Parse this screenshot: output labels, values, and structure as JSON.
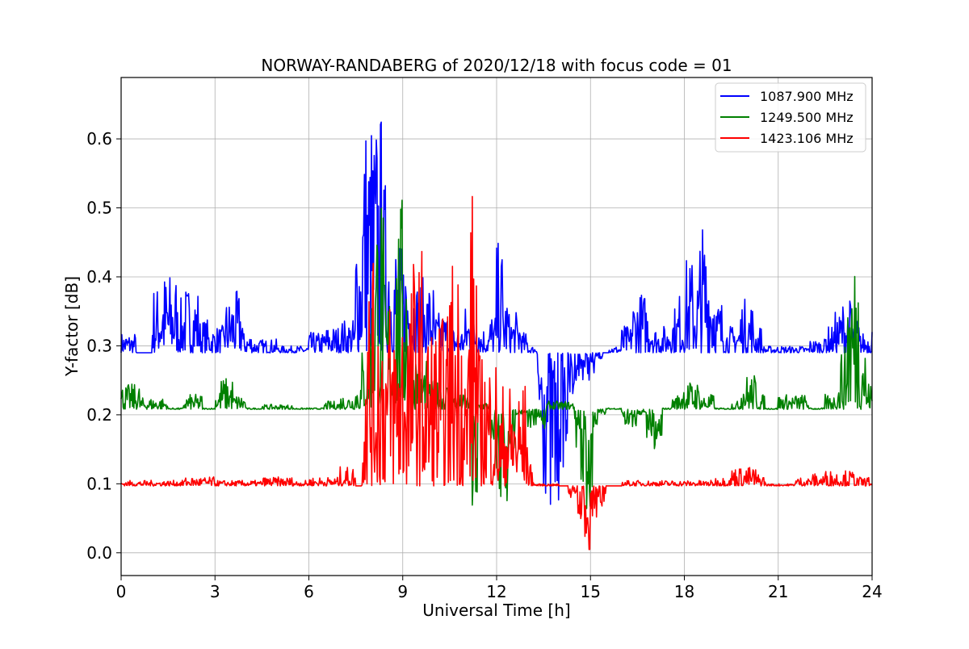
{
  "chart_data": {
    "type": "line",
    "title": "NORWAY-RANDABERG of 2020/12/18 with focus code = 01",
    "xlabel": "Universal Time [h]",
    "ylabel": "Y-factor [dB]",
    "xlim": [
      0,
      24
    ],
    "ylim": [
      -0.033,
      0.689
    ],
    "xticks": [
      0,
      3,
      6,
      9,
      12,
      15,
      18,
      21,
      24
    ],
    "yticks": [
      0.0,
      0.1,
      0.2,
      0.3,
      0.4,
      0.5,
      0.6
    ],
    "ytick_labels": [
      "0.0",
      "0.1",
      "0.2",
      "0.3",
      "0.4",
      "0.5",
      "0.6"
    ],
    "grid": true,
    "legend_position": "top-right",
    "series": [
      {
        "name": "1087.900 MHz",
        "color": "#0000ff",
        "baseline": 0.29,
        "points": [
          [
            0,
            0.29
          ],
          [
            0.3,
            0.32
          ],
          [
            0.5,
            0.29
          ],
          [
            1.0,
            0.29
          ],
          [
            1.2,
            0.39
          ],
          [
            1.3,
            0.41
          ],
          [
            1.5,
            0.33
          ],
          [
            1.6,
            0.41
          ],
          [
            1.8,
            0.34
          ],
          [
            2.0,
            0.37
          ],
          [
            2.2,
            0.39
          ],
          [
            2.5,
            0.34
          ],
          [
            2.8,
            0.33
          ],
          [
            3.0,
            0.31
          ],
          [
            3.3,
            0.33
          ],
          [
            3.5,
            0.37
          ],
          [
            3.7,
            0.38
          ],
          [
            3.9,
            0.32
          ],
          [
            4.2,
            0.31
          ],
          [
            4.5,
            0.31
          ],
          [
            5.0,
            0.3
          ],
          [
            5.5,
            0.3
          ],
          [
            6.0,
            0.3
          ],
          [
            6.5,
            0.32
          ],
          [
            7.0,
            0.33
          ],
          [
            7.3,
            0.34
          ],
          [
            7.5,
            0.3
          ],
          [
            7.7,
            0.5
          ],
          [
            7.8,
            0.65
          ],
          [
            8.0,
            0.6
          ],
          [
            8.2,
            0.65
          ],
          [
            8.4,
            0.55
          ],
          [
            8.6,
            0.48
          ],
          [
            8.8,
            0.45
          ],
          [
            9.0,
            0.45
          ],
          [
            9.2,
            0.42
          ],
          [
            9.4,
            0.36
          ],
          [
            9.6,
            0.4
          ],
          [
            10.0,
            0.35
          ],
          [
            10.5,
            0.33
          ],
          [
            11.0,
            0.32
          ],
          [
            11.3,
            0.36
          ],
          [
            11.5,
            0.33
          ],
          [
            11.8,
            0.3
          ],
          [
            12.0,
            0.35
          ],
          [
            12.1,
            0.45
          ],
          [
            12.2,
            0.38
          ],
          [
            12.4,
            0.3
          ],
          [
            12.6,
            0.35
          ],
          [
            12.8,
            0.32
          ],
          [
            13.0,
            0.3
          ],
          [
            13.3,
            0.2
          ],
          [
            13.5,
            0.15
          ],
          [
            13.7,
            0.08
          ],
          [
            13.85,
            0.0
          ],
          [
            14.0,
            0.12
          ],
          [
            14.3,
            0.2
          ],
          [
            14.5,
            0.25
          ],
          [
            14.8,
            0.27
          ],
          [
            15.0,
            0.25
          ],
          [
            15.2,
            0.28
          ],
          [
            15.4,
            0.29
          ],
          [
            15.6,
            0.29
          ],
          [
            16.0,
            0.3
          ],
          [
            16.3,
            0.33
          ],
          [
            16.5,
            0.38
          ],
          [
            16.8,
            0.37
          ],
          [
            17.0,
            0.33
          ],
          [
            17.3,
            0.31
          ],
          [
            17.5,
            0.33
          ],
          [
            17.8,
            0.36
          ],
          [
            18.0,
            0.38
          ],
          [
            18.2,
            0.43
          ],
          [
            18.4,
            0.38
          ],
          [
            18.5,
            0.42
          ],
          [
            18.6,
            0.48
          ],
          [
            18.8,
            0.44
          ],
          [
            19.0,
            0.37
          ],
          [
            19.3,
            0.33
          ],
          [
            19.6,
            0.32
          ],
          [
            19.8,
            0.34
          ],
          [
            20.0,
            0.37
          ],
          [
            20.2,
            0.33
          ],
          [
            20.5,
            0.3
          ],
          [
            21.0,
            0.3
          ],
          [
            21.5,
            0.3
          ],
          [
            22.0,
            0.3
          ],
          [
            22.5,
            0.31
          ],
          [
            22.8,
            0.33
          ],
          [
            23.0,
            0.35
          ],
          [
            23.2,
            0.37
          ],
          [
            23.4,
            0.34
          ],
          [
            23.6,
            0.31
          ],
          [
            24.0,
            0.32
          ]
        ]
      },
      {
        "name": "1249.500 MHz",
        "color": "#008000",
        "baseline": 0.208,
        "points": [
          [
            0,
            0.21
          ],
          [
            0.3,
            0.245
          ],
          [
            0.6,
            0.21
          ],
          [
            1.0,
            0.225
          ],
          [
            1.5,
            0.21
          ],
          [
            2.0,
            0.21
          ],
          [
            2.3,
            0.23
          ],
          [
            2.6,
            0.21
          ],
          [
            3.0,
            0.21
          ],
          [
            3.2,
            0.24
          ],
          [
            3.4,
            0.255
          ],
          [
            3.6,
            0.23
          ],
          [
            4.0,
            0.21
          ],
          [
            4.5,
            0.21
          ],
          [
            5.0,
            0.215
          ],
          [
            5.5,
            0.21
          ],
          [
            6.0,
            0.21
          ],
          [
            6.5,
            0.21
          ],
          [
            7.0,
            0.22
          ],
          [
            7.3,
            0.23
          ],
          [
            7.5,
            0.2
          ],
          [
            7.7,
            0.25
          ],
          [
            7.9,
            0.3
          ],
          [
            8.1,
            0.4
          ],
          [
            8.2,
            0.55
          ],
          [
            8.4,
            0.4
          ],
          [
            8.6,
            0.35
          ],
          [
            8.8,
            0.3
          ],
          [
            9.0,
            0.52
          ],
          [
            9.2,
            0.3
          ],
          [
            9.5,
            0.28
          ],
          [
            9.8,
            0.25
          ],
          [
            10.0,
            0.24
          ],
          [
            10.3,
            0.25
          ],
          [
            10.6,
            0.22
          ],
          [
            11.0,
            0.23
          ],
          [
            11.2,
            0.05
          ],
          [
            11.4,
            0.18
          ],
          [
            11.6,
            0.22
          ],
          [
            11.8,
            0.2
          ],
          [
            12.0,
            0.16
          ],
          [
            12.2,
            0.05
          ],
          [
            12.4,
            0.15
          ],
          [
            12.6,
            0.2
          ],
          [
            13.0,
            0.21
          ],
          [
            13.3,
            0.18
          ],
          [
            13.6,
            0.2
          ],
          [
            14.0,
            0.22
          ],
          [
            14.3,
            0.22
          ],
          [
            14.5,
            0.21
          ],
          [
            14.7,
            0.15
          ],
          [
            14.9,
            0.04
          ],
          [
            15.1,
            0.18
          ],
          [
            15.3,
            0.2
          ],
          [
            15.5,
            0.21
          ],
          [
            16.0,
            0.21
          ],
          [
            16.3,
            0.18
          ],
          [
            16.5,
            0.2
          ],
          [
            16.8,
            0.21
          ],
          [
            17.0,
            0.15
          ],
          [
            17.3,
            0.21
          ],
          [
            17.6,
            0.21
          ],
          [
            17.9,
            0.23
          ],
          [
            18.2,
            0.25
          ],
          [
            18.5,
            0.23
          ],
          [
            19.0,
            0.21
          ],
          [
            19.5,
            0.21
          ],
          [
            19.8,
            0.22
          ],
          [
            20.0,
            0.26
          ],
          [
            20.3,
            0.23
          ],
          [
            20.6,
            0.21
          ],
          [
            21.0,
            0.21
          ],
          [
            21.5,
            0.23
          ],
          [
            22.0,
            0.21
          ],
          [
            22.5,
            0.21
          ],
          [
            22.8,
            0.23
          ],
          [
            23.0,
            0.25
          ],
          [
            23.2,
            0.3
          ],
          [
            23.4,
            0.45
          ],
          [
            23.6,
            0.35
          ],
          [
            23.8,
            0.25
          ],
          [
            24.0,
            0.22
          ]
        ]
      },
      {
        "name": "1423.106 MHz",
        "color": "#ff0000",
        "baseline": 0.097,
        "points": [
          [
            0,
            0.097
          ],
          [
            0.5,
            0.105
          ],
          [
            1.0,
            0.097
          ],
          [
            1.5,
            0.105
          ],
          [
            2.0,
            0.097
          ],
          [
            2.5,
            0.11
          ],
          [
            3.0,
            0.1
          ],
          [
            3.5,
            0.105
          ],
          [
            4.0,
            0.1
          ],
          [
            4.5,
            0.105
          ],
          [
            5.0,
            0.11
          ],
          [
            5.5,
            0.1
          ],
          [
            6.0,
            0.105
          ],
          [
            6.5,
            0.11
          ],
          [
            7.0,
            0.1
          ],
          [
            7.3,
            0.125
          ],
          [
            7.5,
            0.097
          ],
          [
            7.7,
            0.097
          ],
          [
            7.75,
            0.35
          ],
          [
            7.9,
            0.4
          ],
          [
            8.1,
            0.42
          ],
          [
            8.3,
            0.4
          ],
          [
            8.5,
            0.35
          ],
          [
            8.7,
            0.38
          ],
          [
            8.9,
            0.3
          ],
          [
            9.1,
            0.4
          ],
          [
            9.3,
            0.28
          ],
          [
            9.5,
            0.45
          ],
          [
            9.7,
            0.3
          ],
          [
            9.9,
            0.35
          ],
          [
            10.1,
            0.2
          ],
          [
            10.3,
            0.35
          ],
          [
            10.5,
            0.25
          ],
          [
            10.7,
            0.45
          ],
          [
            10.9,
            0.3
          ],
          [
            11.1,
            0.28
          ],
          [
            11.2,
            0.54
          ],
          [
            11.4,
            0.3
          ],
          [
            11.6,
            0.25
          ],
          [
            11.8,
            0.3
          ],
          [
            12.0,
            0.22
          ],
          [
            12.2,
            0.18
          ],
          [
            12.4,
            0.25
          ],
          [
            12.6,
            0.15
          ],
          [
            12.8,
            0.25
          ],
          [
            13.0,
            0.13
          ],
          [
            13.2,
            0.1
          ],
          [
            13.5,
            0.1
          ],
          [
            13.8,
            0.1
          ],
          [
            14.0,
            0.1
          ],
          [
            14.3,
            0.097
          ],
          [
            14.6,
            0.08
          ],
          [
            14.8,
            0.0
          ],
          [
            15.0,
            0.07
          ],
          [
            15.3,
            0.05
          ],
          [
            15.5,
            0.097
          ],
          [
            16.0,
            0.1
          ],
          [
            16.5,
            0.105
          ],
          [
            17.0,
            0.1
          ],
          [
            17.5,
            0.105
          ],
          [
            18.0,
            0.1
          ],
          [
            18.5,
            0.105
          ],
          [
            19.0,
            0.1
          ],
          [
            19.5,
            0.11
          ],
          [
            20.0,
            0.125
          ],
          [
            20.3,
            0.115
          ],
          [
            20.6,
            0.1
          ],
          [
            21.0,
            0.1
          ],
          [
            21.5,
            0.1
          ],
          [
            22.0,
            0.11
          ],
          [
            22.5,
            0.115
          ],
          [
            23.0,
            0.12
          ],
          [
            23.5,
            0.11
          ],
          [
            24.0,
            0.1
          ]
        ]
      }
    ]
  }
}
